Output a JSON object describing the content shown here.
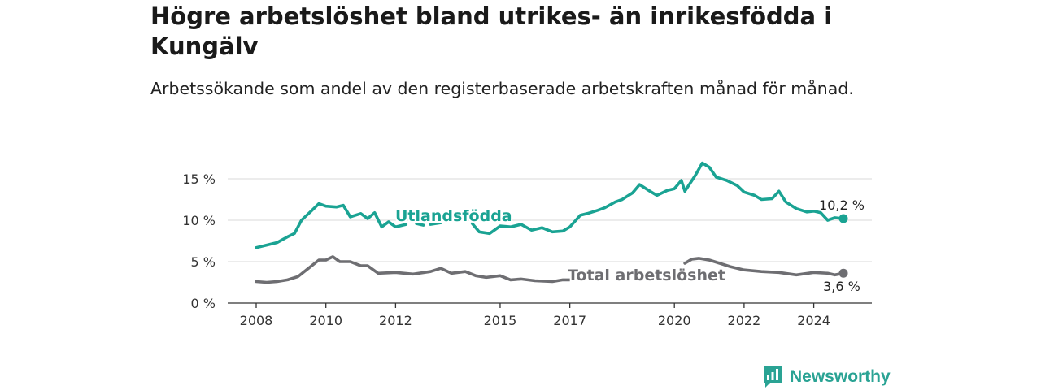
{
  "title": "Högre arbetslöshet bland utrikes- än inrikesfödda i Kungälv",
  "subtitle": "Arbetssökande som andel av den registerbaserade arbetskraften månad för månad.",
  "brand": "Newsworthy",
  "colors": {
    "foreign": "#1aa393",
    "total": "#6e6e72",
    "grid": "#d9d9d9",
    "axis": "#333333"
  },
  "chart_data": {
    "type": "line",
    "title": "",
    "xlabel": "",
    "ylabel": "",
    "ylim": [
      0,
      17.5
    ],
    "xlim": [
      2008,
      2025
    ],
    "y_ticks": [
      0,
      5,
      10,
      15
    ],
    "y_tick_labels": [
      "0 %",
      "5 %",
      "10 %",
      "15 %"
    ],
    "x_ticks": [
      2008,
      2010,
      2012,
      2015,
      2017,
      2020,
      2022,
      2024
    ],
    "x_tick_labels": [
      "2008",
      "2010",
      "2012",
      "2015",
      "2017",
      "2020",
      "2022",
      "2024"
    ],
    "grid": "horizontal",
    "legend": "inline labels",
    "series": [
      {
        "name": "Utlandsfödda",
        "end_label": "10,2 %",
        "points": [
          [
            2008.0,
            6.7
          ],
          [
            2008.3,
            7.0
          ],
          [
            2008.6,
            7.3
          ],
          [
            2008.9,
            8.0
          ],
          [
            2009.1,
            8.4
          ],
          [
            2009.3,
            10.0
          ],
          [
            2009.6,
            11.2
          ],
          [
            2009.8,
            12.0
          ],
          [
            2010.0,
            11.7
          ],
          [
            2010.3,
            11.6
          ],
          [
            2010.5,
            11.8
          ],
          [
            2010.7,
            10.4
          ],
          [
            2011.0,
            10.8
          ],
          [
            2011.2,
            10.2
          ],
          [
            2011.4,
            10.9
          ],
          [
            2011.6,
            9.2
          ],
          [
            2011.8,
            9.8
          ],
          [
            2012.0,
            9.2
          ],
          [
            2012.3,
            9.5
          ],
          null,
          [
            2012.6,
            9.6
          ],
          [
            2012.8,
            9.4
          ],
          null,
          [
            2013.0,
            9.5
          ],
          [
            2013.3,
            9.7
          ],
          null,
          [
            2014.2,
            9.6
          ],
          [
            2014.4,
            8.6
          ],
          [
            2014.7,
            8.4
          ],
          [
            2015.0,
            9.3
          ],
          [
            2015.3,
            9.2
          ],
          [
            2015.6,
            9.5
          ],
          [
            2015.9,
            8.8
          ],
          [
            2016.2,
            9.1
          ],
          [
            2016.5,
            8.6
          ],
          [
            2016.8,
            8.7
          ],
          [
            2017.0,
            9.2
          ],
          [
            2017.3,
            10.6
          ],
          [
            2017.5,
            10.8
          ],
          [
            2017.8,
            11.2
          ],
          [
            2018.0,
            11.5
          ],
          [
            2018.3,
            12.2
          ],
          [
            2018.5,
            12.5
          ],
          [
            2018.8,
            13.3
          ],
          [
            2019.0,
            14.3
          ],
          [
            2019.3,
            13.5
          ],
          [
            2019.5,
            13.0
          ],
          [
            2019.8,
            13.6
          ],
          [
            2020.0,
            13.8
          ],
          [
            2020.2,
            14.8
          ],
          [
            2020.3,
            13.5
          ],
          [
            2020.6,
            15.4
          ],
          [
            2020.8,
            16.9
          ],
          [
            2021.0,
            16.4
          ],
          [
            2021.2,
            15.2
          ],
          [
            2021.5,
            14.8
          ],
          [
            2021.8,
            14.2
          ],
          [
            2022.0,
            13.4
          ],
          [
            2022.3,
            13.0
          ],
          [
            2022.5,
            12.5
          ],
          [
            2022.8,
            12.6
          ],
          [
            2023.0,
            13.5
          ],
          [
            2023.2,
            12.2
          ],
          [
            2023.5,
            11.4
          ],
          [
            2023.8,
            11.0
          ],
          [
            2024.0,
            11.1
          ],
          [
            2024.2,
            10.9
          ],
          [
            2024.4,
            10.0
          ],
          [
            2024.6,
            10.3
          ],
          [
            2024.85,
            10.2
          ]
        ]
      },
      {
        "name": "Total arbetslöshet",
        "end_label": "3,6 %",
        "points": [
          [
            2008.0,
            2.6
          ],
          [
            2008.3,
            2.5
          ],
          [
            2008.6,
            2.6
          ],
          [
            2008.9,
            2.8
          ],
          [
            2009.2,
            3.2
          ],
          [
            2009.5,
            4.2
          ],
          [
            2009.8,
            5.2
          ],
          [
            2010.0,
            5.2
          ],
          [
            2010.2,
            5.6
          ],
          [
            2010.4,
            5.0
          ],
          [
            2010.7,
            5.0
          ],
          [
            2011.0,
            4.5
          ],
          [
            2011.2,
            4.5
          ],
          [
            2011.5,
            3.6
          ],
          [
            2012.0,
            3.7
          ],
          [
            2012.5,
            3.5
          ],
          [
            2013.0,
            3.8
          ],
          [
            2013.3,
            4.2
          ],
          [
            2013.6,
            3.6
          ],
          [
            2014.0,
            3.8
          ],
          [
            2014.3,
            3.3
          ],
          [
            2014.6,
            3.1
          ],
          [
            2015.0,
            3.3
          ],
          [
            2015.3,
            2.8
          ],
          [
            2015.6,
            2.9
          ],
          [
            2016.0,
            2.7
          ],
          [
            2016.5,
            2.6
          ],
          [
            2016.8,
            2.8
          ],
          [
            2017.0,
            2.8
          ],
          null,
          [
            2020.3,
            4.8
          ],
          [
            2020.5,
            5.3
          ],
          [
            2020.7,
            5.4
          ],
          [
            2021.0,
            5.2
          ],
          [
            2021.3,
            4.8
          ],
          [
            2021.6,
            4.4
          ],
          [
            2022.0,
            4.0
          ],
          [
            2022.5,
            3.8
          ],
          [
            2023.0,
            3.7
          ],
          [
            2023.5,
            3.4
          ],
          [
            2024.0,
            3.7
          ],
          [
            2024.4,
            3.6
          ],
          [
            2024.6,
            3.4
          ],
          [
            2024.85,
            3.6
          ]
        ]
      }
    ]
  }
}
